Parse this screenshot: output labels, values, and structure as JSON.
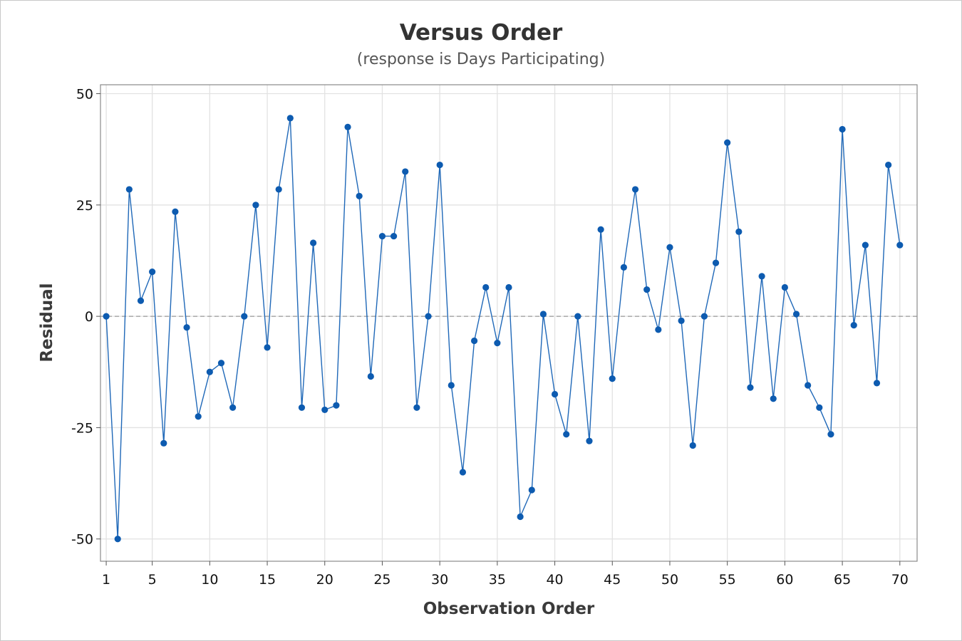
{
  "chart_data": {
    "type": "line",
    "title": "Versus Order",
    "subtitle": "(response is Days Participating)",
    "xlabel": "Observation Order",
    "ylabel": "Residual",
    "xlim": [
      0.5,
      71.5
    ],
    "ylim": [
      -55,
      52
    ],
    "x_ticks": [
      1,
      5,
      10,
      15,
      20,
      25,
      30,
      35,
      40,
      45,
      50,
      55,
      60,
      65,
      70
    ],
    "x_tick_labels": [
      "1",
      "5",
      "10",
      "15",
      "20",
      "25",
      "30",
      "35",
      "40",
      "45",
      "50",
      "55",
      "60",
      "65",
      "70"
    ],
    "y_ticks": [
      50,
      25,
      0,
      -25,
      -50
    ],
    "y_tick_labels": [
      "50",
      "25",
      "0",
      "-25",
      "-50"
    ],
    "grid": true,
    "reference_line": 0,
    "colors": {
      "series": "#1f68b8",
      "marker": "#0d5bb0",
      "reference": "#999999"
    },
    "series": [
      {
        "x": [
          1,
          2,
          3,
          4,
          5,
          6,
          7,
          8,
          9,
          10,
          11,
          12,
          13,
          14,
          15,
          16,
          17,
          18,
          19,
          20,
          21,
          22,
          23,
          24,
          25,
          26,
          27,
          28,
          29,
          30,
          31,
          32,
          33,
          34,
          35,
          36,
          37,
          38,
          39,
          40,
          41,
          42,
          43,
          44,
          45,
          46,
          47,
          48,
          49,
          50,
          51,
          52,
          53,
          54,
          55,
          56,
          57,
          58,
          59,
          60,
          61,
          62,
          63,
          64,
          65,
          66,
          67,
          68,
          69,
          70
        ],
        "values": [
          0,
          -50,
          28.5,
          3.5,
          10,
          -28.5,
          23.5,
          -2.5,
          -22.5,
          -12.5,
          -10.5,
          -20.5,
          0,
          25,
          -7,
          28.5,
          44.5,
          -20.5,
          16.5,
          -21,
          -20,
          42.5,
          27,
          -13.5,
          18,
          18,
          32.5,
          -20.5,
          0,
          34,
          -15.5,
          -35,
          -5.5,
          6.5,
          -6,
          6.5,
          -45,
          -39,
          0.5,
          -17.5,
          -26.5,
          0,
          -28,
          19.5,
          -14,
          11,
          28.5,
          6,
          -3,
          15.5,
          -1,
          -29,
          0,
          12,
          39,
          19,
          -16,
          9,
          -18.5,
          6.5,
          0.5,
          -15.5,
          -20.5,
          -26.5,
          42,
          -2,
          16,
          -15,
          34,
          16
        ]
      }
    ]
  }
}
